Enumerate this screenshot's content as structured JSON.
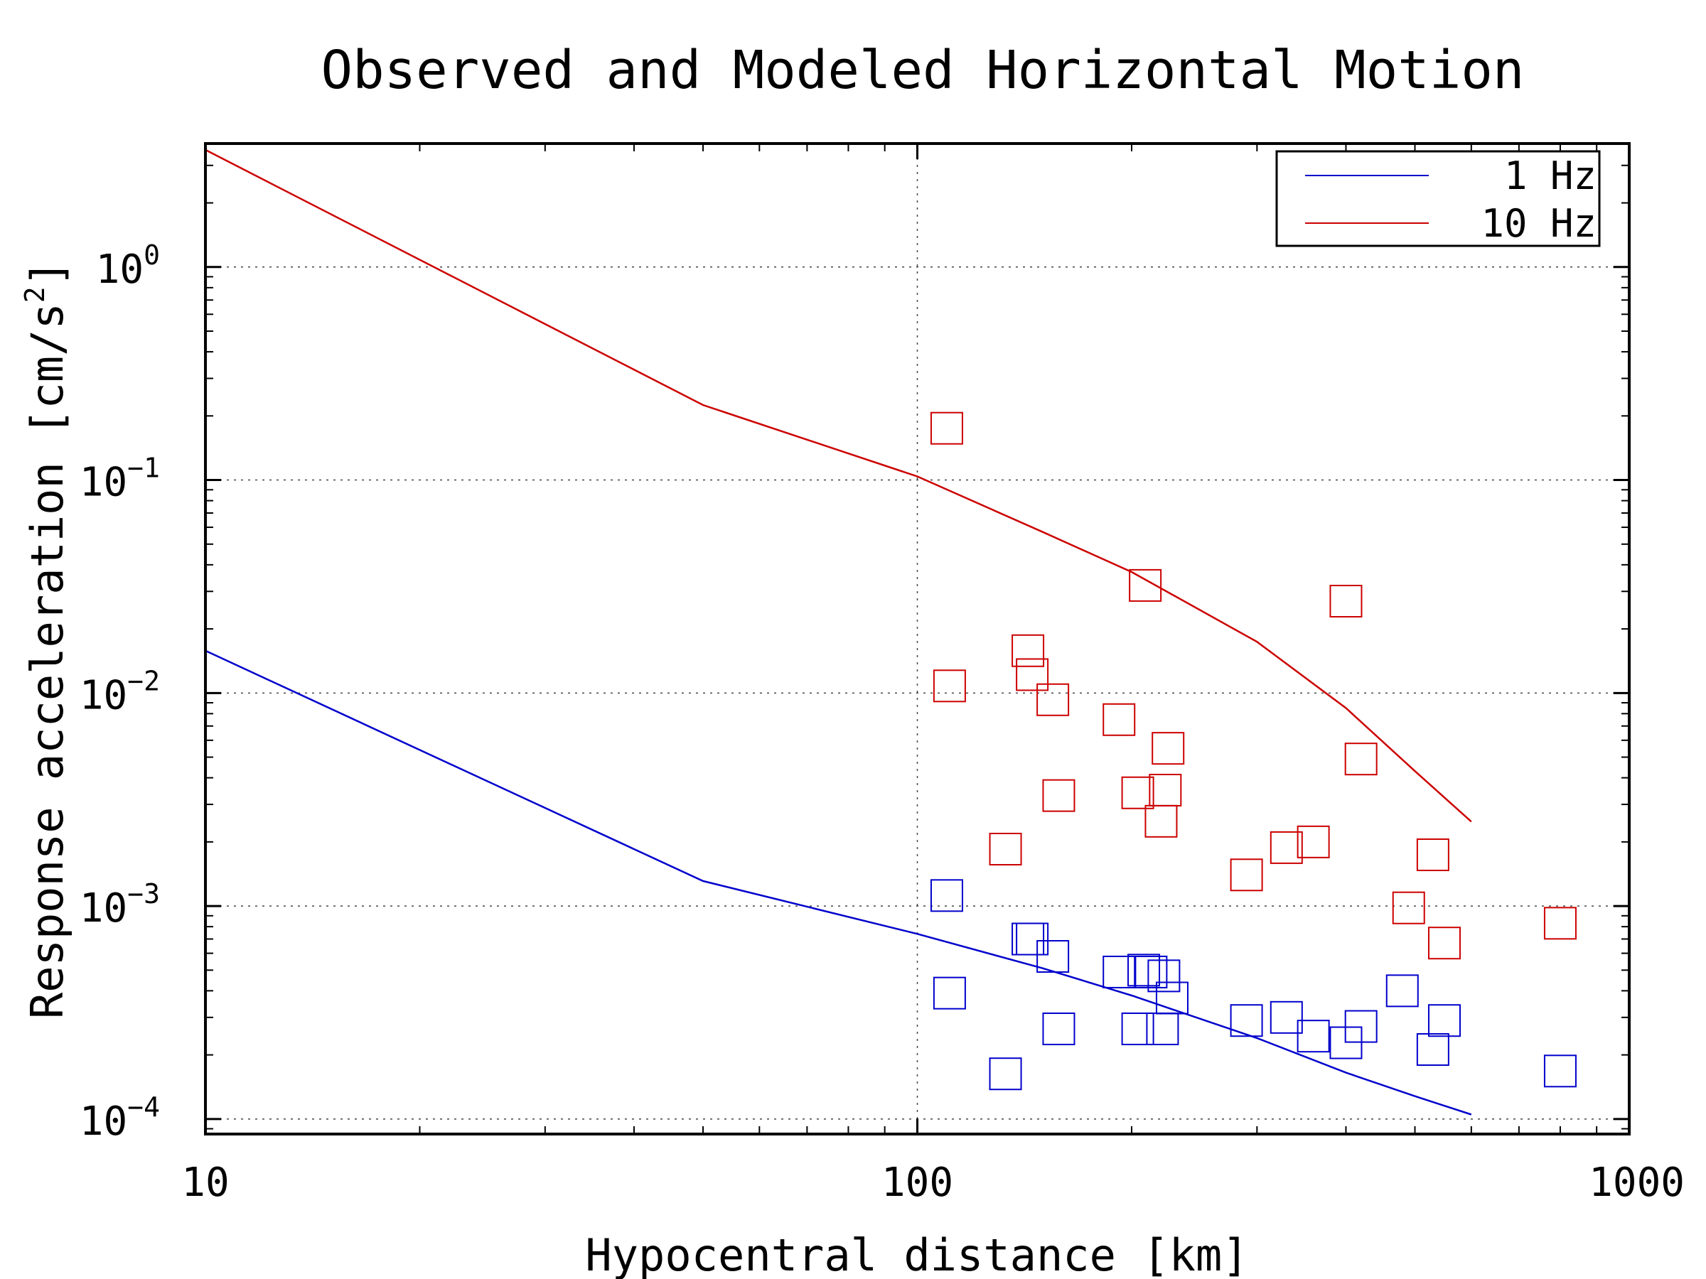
{
  "chart_data": {
    "type": "scatter",
    "title": "Observed and Modeled Horizontal Motion",
    "xlabel": "Hypocentral distance [km]",
    "ylabel_base": "Response acceleration [cm/s",
    "ylabel_sup": "2",
    "ylabel_end": "]",
    "xscale": "log",
    "yscale": "log",
    "xlim": [
      10,
      1000
    ],
    "ylim": [
      8.5e-05,
      3.8
    ],
    "x_ticks": [
      {
        "value": 10,
        "label": "10"
      },
      {
        "value": 100,
        "label": "100"
      },
      {
        "value": 1000,
        "label": "1000"
      }
    ],
    "y_ticks": [
      {
        "value": 1,
        "base": "10",
        "exp": "0"
      },
      {
        "value": 0.1,
        "base": "10",
        "exp": "−1"
      },
      {
        "value": 0.01,
        "base": "10",
        "exp": "−2"
      },
      {
        "value": 0.001,
        "base": "10",
        "exp": "−3"
      },
      {
        "value": 0.0001,
        "base": "10",
        "exp": "−4"
      }
    ],
    "grid": true,
    "legend_position": "top-right",
    "series": [
      {
        "name": "1 Hz",
        "color": "#0000cc",
        "line": {
          "x": [
            10,
            50,
            100,
            150,
            200,
            300,
            400,
            500,
            600
          ],
          "y": [
            0.0158,
            0.00131,
            0.00074,
            0.00051,
            0.00038,
            0.00024,
            0.000165,
            0.000128,
            0.000105
          ]
        },
        "observed": {
          "x": [
            110,
            111,
            133,
            143,
            145,
            155,
            158,
            192,
            204,
            208,
            213,
            221,
            222,
            228,
            290,
            330,
            360,
            400,
            420,
            480,
            530,
            550,
            800
          ],
          "y": [
            0.00112,
            0.00039,
            0.000163,
            0.0007,
            0.0007,
            0.00058,
            0.000265,
            0.00049,
            0.000265,
            0.0005,
            0.00049,
            0.000265,
            0.00047,
            0.00037,
            0.00029,
            0.0003,
            0.000245,
            0.000228,
            0.000272,
            0.0004,
            0.000212,
            0.00029,
            0.000168
          ]
        }
      },
      {
        "name": "10 Hz",
        "color": "#cc0000",
        "line": {
          "x": [
            10,
            50,
            100,
            150,
            200,
            300,
            400,
            500,
            600
          ],
          "y": [
            3.55,
            0.225,
            0.104,
            0.057,
            0.037,
            0.0174,
            0.0085,
            0.0043,
            0.00249
          ]
        },
        "observed": {
          "x": [
            110,
            111,
            133,
            143,
            145,
            155,
            158,
            192,
            204,
            209,
            220,
            223,
            225,
            290,
            330,
            360,
            400,
            420,
            490,
            530,
            550,
            800
          ],
          "y": [
            0.175,
            0.0108,
            0.00185,
            0.0158,
            0.0122,
            0.0093,
            0.0033,
            0.0075,
            0.0034,
            0.032,
            0.0025,
            0.0035,
            0.0055,
            0.0014,
            0.00188,
            0.002,
            0.027,
            0.0049,
            0.00098,
            0.00174,
            0.00067,
            0.00083
          ]
        }
      }
    ]
  }
}
